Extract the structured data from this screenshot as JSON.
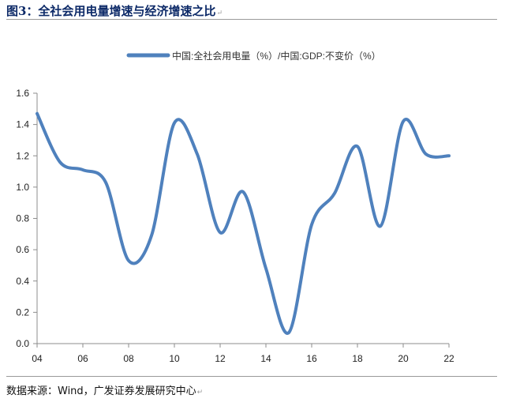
{
  "header": {
    "title": "图3：全社会用电量增速与经济增速之比",
    "mark": "↵"
  },
  "footer": {
    "source": "数据来源：Wind，广发证券发展研究中心",
    "mark": "↵"
  },
  "colors": {
    "line": "#4f81bd",
    "axis": "#8c8c8c",
    "title": "#0d2a68"
  },
  "chart_data": {
    "type": "line",
    "title": "",
    "xlabel": "",
    "ylabel": "",
    "xlim": [
      2004,
      2022
    ],
    "ylim": [
      0,
      1.6
    ],
    "grid": false,
    "legend": "top-center",
    "x_ticks": [
      "04",
      "06",
      "08",
      "10",
      "12",
      "14",
      "16",
      "18",
      "20",
      "22"
    ],
    "y_ticks": [
      "0.0",
      "0.2",
      "0.4",
      "0.6",
      "0.8",
      "1.0",
      "1.2",
      "1.4",
      "1.6"
    ],
    "series": [
      {
        "name": "中国:全社会用电量（%）/中国:GDP:不变价（%）",
        "x": [
          2004,
          2005,
          2006,
          2007,
          2008,
          2009,
          2010,
          2011,
          2012,
          2013,
          2014,
          2015,
          2016,
          2017,
          2018,
          2019,
          2020,
          2021,
          2022
        ],
        "values": [
          1.47,
          1.16,
          1.11,
          1.03,
          0.53,
          0.69,
          1.41,
          1.21,
          0.71,
          0.97,
          0.48,
          0.07,
          0.76,
          0.96,
          1.26,
          0.75,
          1.42,
          1.21,
          1.2
        ]
      }
    ]
  }
}
